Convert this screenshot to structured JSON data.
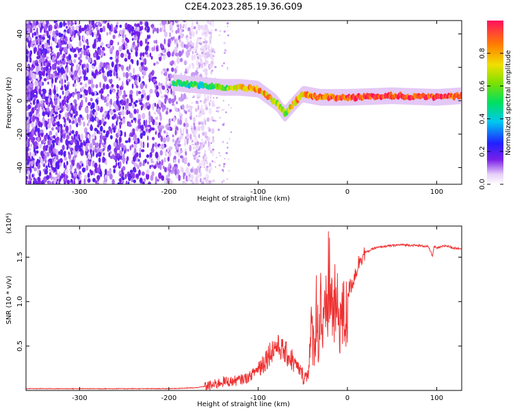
{
  "title": "C2E4.2023.285.19.36.G09",
  "chart_data": [
    {
      "type": "heatmap",
      "xlabel": "Height of straight line (km)",
      "ylabel": "Frequency (Hz)",
      "xlim": [
        -360,
        128
      ],
      "ylim": [
        -50,
        48
      ],
      "xticks": [
        -300,
        -200,
        -100,
        0,
        100
      ],
      "yticks": [
        -40,
        -20,
        0,
        20,
        40
      ],
      "colorbar": {
        "label": "Normalized spectral amplitude",
        "range": [
          0,
          1
        ],
        "ticks": [
          "0.0",
          "0.2",
          "0.4",
          "0.6",
          "0.8"
        ]
      },
      "signal_track": {
        "x": [
          -195,
          -180,
          -160,
          -140,
          -120,
          -100,
          -90,
          -80,
          -70,
          -62,
          -50,
          -40,
          -30,
          -20,
          0,
          50,
          100,
          128
        ],
        "freq": [
          11,
          10,
          9,
          8,
          8,
          7,
          3,
          -1,
          -8,
          -3,
          4,
          3,
          2,
          2,
          2,
          3,
          2,
          3
        ],
        "amplitude": [
          0.5,
          0.45,
          0.5,
          0.55,
          0.75,
          0.8,
          0.8,
          0.7,
          0.6,
          0.75,
          0.8,
          0.85,
          0.85,
          0.9,
          0.95,
          0.95,
          0.95,
          0.9
        ]
      },
      "noise_region": {
        "x_range": [
          -360,
          -180
        ],
        "freq_range": [
          -50,
          48
        ],
        "amplitude_range": [
          0.1,
          0.3
        ]
      }
    },
    {
      "type": "line",
      "xlabel": "Height of straight line (km)",
      "ylabel": "SNR (10 * v/v)",
      "y_multiplier": "(x10⁴)",
      "xlim": [
        -360,
        128
      ],
      "ylim": [
        0,
        1.85
      ],
      "xticks": [
        -300,
        -200,
        -100,
        0,
        100
      ],
      "yticks": [
        "0.5",
        "1.0",
        "1.5"
      ],
      "series": [
        {
          "color": "#ee3030",
          "x": [
            -360,
            -300,
            -250,
            -200,
            -170,
            -150,
            -140,
            -130,
            -120,
            -110,
            -100,
            -95,
            -90,
            -85,
            -80,
            -75,
            -70,
            -65,
            -60,
            -55,
            -50,
            -45,
            -42,
            -40,
            -37,
            -35,
            -32,
            -30,
            -28,
            -25,
            -22,
            -20,
            -19,
            -18,
            -15,
            -12,
            -10,
            -5,
            0,
            5,
            10,
            15,
            20,
            30,
            40,
            60,
            80,
            90,
            94,
            95,
            97,
            100,
            110,
            120,
            128
          ],
          "y": [
            0.02,
            0.02,
            0.02,
            0.02,
            0.03,
            0.06,
            0.1,
            0.1,
            0.12,
            0.15,
            0.25,
            0.3,
            0.38,
            0.45,
            0.5,
            0.48,
            0.42,
            0.38,
            0.32,
            0.25,
            0.18,
            0.22,
            0.55,
            0.9,
            0.6,
            1.2,
            0.7,
            1.4,
            0.8,
            1.0,
            1.3,
            1.85,
            1.2,
            1.25,
            1.2,
            1.15,
            1.1,
            1.05,
            1.1,
            1.2,
            1.35,
            1.5,
            1.55,
            1.6,
            1.62,
            1.64,
            1.63,
            1.62,
            1.55,
            1.5,
            1.62,
            1.6,
            1.63,
            1.6,
            1.6
          ]
        }
      ]
    }
  ]
}
